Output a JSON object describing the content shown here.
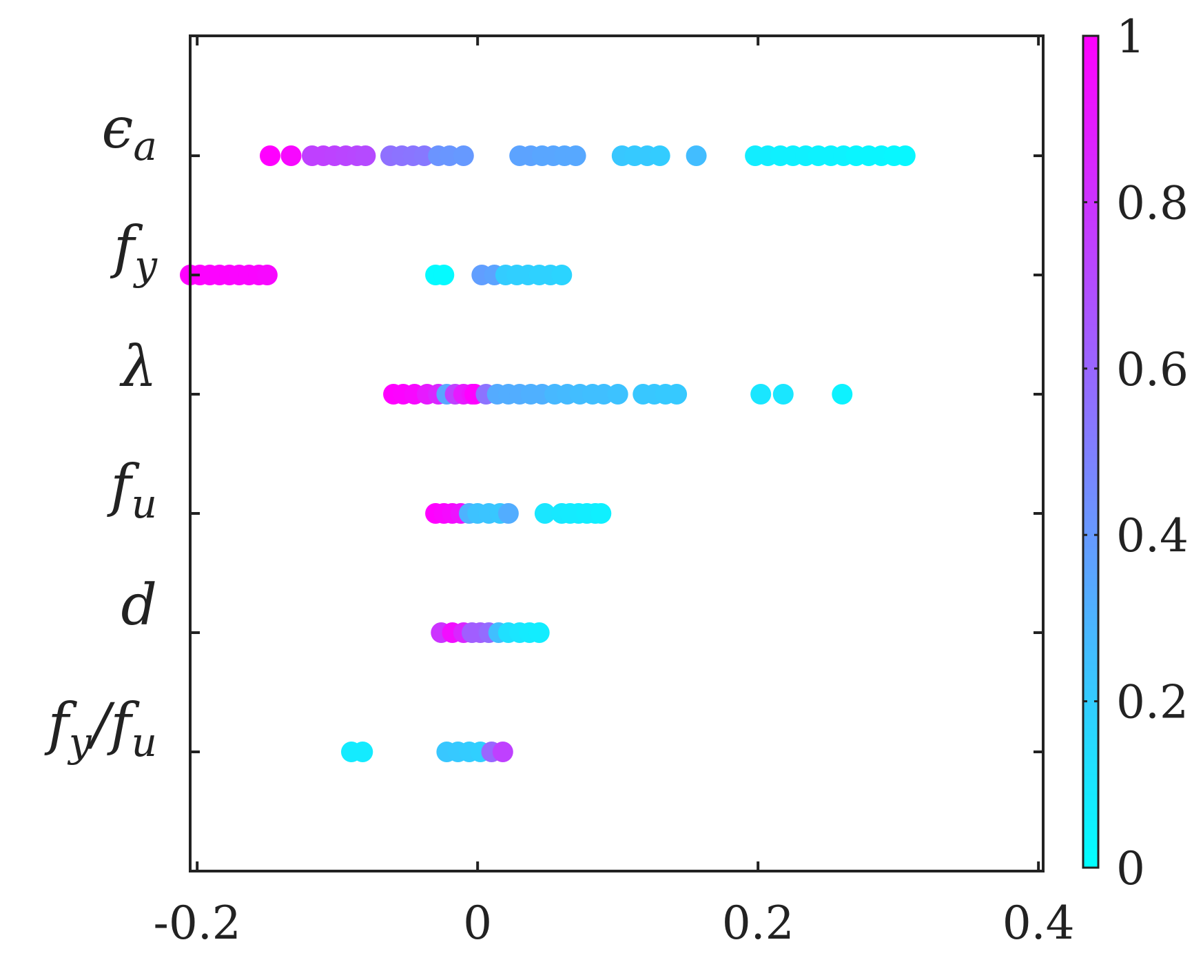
{
  "chart_data": {
    "type": "scatter",
    "title": "",
    "xlabel": "",
    "ylabel": "",
    "xlim": [
      -0.205,
      0.4
    ],
    "x_ticks": [
      -0.2,
      0,
      0.2,
      0.4
    ],
    "x_tick_labels": [
      "-0.2",
      "0",
      "0.2",
      "0.4"
    ],
    "categories": [
      {
        "id": "ea",
        "base": "ϵ",
        "sub": "a"
      },
      {
        "id": "fy",
        "base": "f",
        "sub": "y"
      },
      {
        "id": "lam",
        "base": "λ",
        "sub": ""
      },
      {
        "id": "fu",
        "base": "f",
        "sub": "u"
      },
      {
        "id": "d",
        "base": "d",
        "sub": ""
      },
      {
        "id": "fyfu",
        "base": "f",
        "sub": "y",
        "extra_base": "/f",
        "extra_sub": "u"
      }
    ],
    "colorbar": {
      "range": [
        0,
        1
      ],
      "ticks": [
        0,
        0.2,
        0.4,
        0.6,
        0.8,
        1
      ],
      "tick_labels": [
        "0",
        "0.2",
        "0.4",
        "0.6",
        "0.8",
        "1"
      ],
      "color_low": "#00ffff",
      "color_high": "#ff00ff"
    },
    "grid": false,
    "legend": "colorbar-right",
    "series": [
      {
        "category": "ea",
        "points": [
          [
            -0.148,
            1.0
          ],
          [
            -0.133,
            0.97
          ],
          [
            -0.118,
            0.75
          ],
          [
            -0.11,
            0.75
          ],
          [
            -0.102,
            0.74
          ],
          [
            -0.094,
            0.73
          ],
          [
            -0.086,
            0.72
          ],
          [
            -0.08,
            0.71
          ],
          [
            -0.062,
            0.56
          ],
          [
            -0.054,
            0.55
          ],
          [
            -0.046,
            0.54
          ],
          [
            -0.038,
            0.53
          ],
          [
            -0.028,
            0.42
          ],
          [
            -0.02,
            0.41
          ],
          [
            -0.01,
            0.4
          ],
          [
            0.03,
            0.36
          ],
          [
            0.038,
            0.36
          ],
          [
            0.046,
            0.35
          ],
          [
            0.054,
            0.35
          ],
          [
            0.062,
            0.34
          ],
          [
            0.07,
            0.34
          ],
          [
            0.103,
            0.22
          ],
          [
            0.112,
            0.21
          ],
          [
            0.121,
            0.21
          ],
          [
            0.13,
            0.2
          ],
          [
            0.156,
            0.26
          ],
          [
            0.198,
            0.07
          ],
          [
            0.207,
            0.07
          ],
          [
            0.216,
            0.06
          ],
          [
            0.225,
            0.06
          ],
          [
            0.234,
            0.06
          ],
          [
            0.243,
            0.05
          ],
          [
            0.252,
            0.05
          ],
          [
            0.261,
            0.05
          ],
          [
            0.27,
            0.04
          ],
          [
            0.279,
            0.04
          ],
          [
            0.288,
            0.04
          ],
          [
            0.297,
            0.03
          ],
          [
            0.305,
            0.03
          ]
        ]
      },
      {
        "category": "fy",
        "points": [
          [
            -0.205,
            1.0
          ],
          [
            -0.198,
            1.0
          ],
          [
            -0.191,
            0.99
          ],
          [
            -0.184,
            0.99
          ],
          [
            -0.177,
            0.99
          ],
          [
            -0.17,
            0.98
          ],
          [
            -0.163,
            0.98
          ],
          [
            -0.156,
            0.98
          ],
          [
            -0.15,
            0.97
          ],
          [
            -0.03,
            0.02
          ],
          [
            -0.024,
            0.02
          ],
          [
            0.003,
            0.38
          ],
          [
            0.012,
            0.36
          ],
          [
            0.02,
            0.2
          ],
          [
            0.028,
            0.19
          ],
          [
            0.036,
            0.19
          ],
          [
            0.044,
            0.18
          ],
          [
            0.052,
            0.18
          ],
          [
            0.06,
            0.17
          ]
        ]
      },
      {
        "category": "lam",
        "points": [
          [
            -0.06,
            1.0
          ],
          [
            -0.053,
            0.99
          ],
          [
            -0.045,
            0.97
          ],
          [
            -0.036,
            0.9
          ],
          [
            -0.028,
            0.85
          ],
          [
            -0.022,
            0.35
          ],
          [
            -0.016,
            0.75
          ],
          [
            -0.01,
            0.9
          ],
          [
            -0.004,
            0.93
          ],
          [
            -0.002,
            1.0
          ],
          [
            0.006,
            0.55
          ],
          [
            0.014,
            0.33
          ],
          [
            0.022,
            0.32
          ],
          [
            0.03,
            0.32
          ],
          [
            0.038,
            0.31
          ],
          [
            0.046,
            0.31
          ],
          [
            0.055,
            0.28
          ],
          [
            0.064,
            0.27
          ],
          [
            0.073,
            0.26
          ],
          [
            0.082,
            0.25
          ],
          [
            0.09,
            0.25
          ],
          [
            0.1,
            0.24
          ],
          [
            0.118,
            0.22
          ],
          [
            0.126,
            0.22
          ],
          [
            0.134,
            0.21
          ],
          [
            0.142,
            0.21
          ],
          [
            0.202,
            0.1
          ],
          [
            0.218,
            0.1
          ],
          [
            0.26,
            0.05
          ]
        ]
      },
      {
        "category": "fu",
        "points": [
          [
            -0.03,
            1.0
          ],
          [
            -0.024,
            0.98
          ],
          [
            -0.018,
            0.96
          ],
          [
            -0.012,
            0.93
          ],
          [
            -0.006,
            0.3
          ],
          [
            0.0,
            0.24
          ],
          [
            0.008,
            0.23
          ],
          [
            0.016,
            0.22
          ],
          [
            0.022,
            0.32
          ],
          [
            0.048,
            0.1
          ],
          [
            0.06,
            0.09
          ],
          [
            0.066,
            0.08
          ],
          [
            0.072,
            0.08
          ],
          [
            0.078,
            0.07
          ],
          [
            0.084,
            0.07
          ],
          [
            0.088,
            0.06
          ]
        ]
      },
      {
        "category": "d",
        "points": [
          [
            -0.026,
            0.8
          ],
          [
            -0.018,
            0.95
          ],
          [
            -0.01,
            0.85
          ],
          [
            -0.004,
            0.63
          ],
          [
            0.002,
            0.63
          ],
          [
            0.008,
            0.58
          ],
          [
            0.015,
            0.25
          ],
          [
            0.022,
            0.12
          ],
          [
            0.03,
            0.1
          ],
          [
            0.037,
            0.08
          ],
          [
            0.044,
            0.07
          ]
        ]
      },
      {
        "category": "fyfu",
        "points": [
          [
            -0.09,
            0.08
          ],
          [
            -0.082,
            0.08
          ],
          [
            -0.022,
            0.22
          ],
          [
            -0.014,
            0.21
          ],
          [
            -0.006,
            0.2
          ],
          [
            0.002,
            0.19
          ],
          [
            0.01,
            0.6
          ],
          [
            0.018,
            0.75
          ]
        ]
      }
    ]
  }
}
